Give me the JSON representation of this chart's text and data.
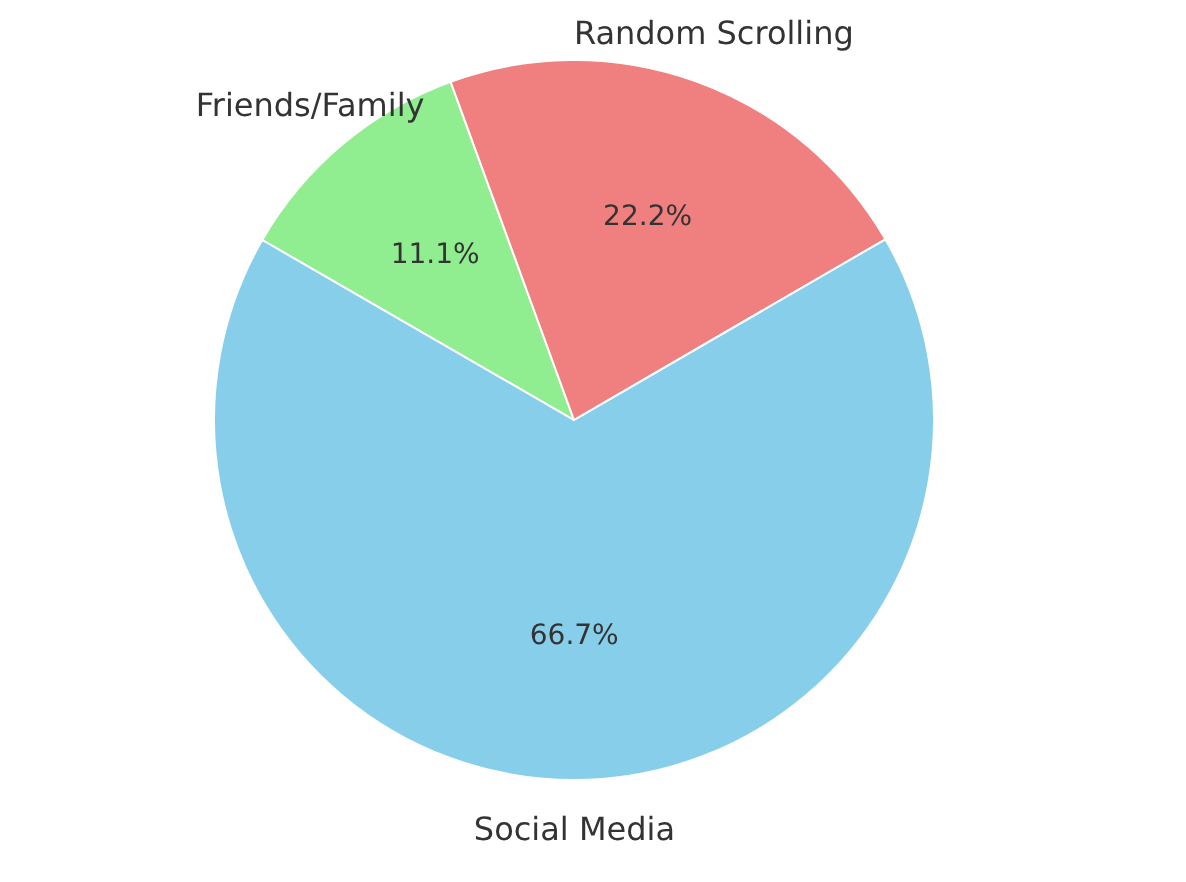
{
  "chart_data": {
    "type": "pie",
    "categories": [
      "Friends/Family",
      "Random Scrolling",
      "Social Media"
    ],
    "values": [
      11.1,
      22.2,
      66.7
    ],
    "colors": [
      "#90ee90",
      "#f08080",
      "#87ceeb"
    ],
    "value_labels": [
      "11.1%",
      "22.2%",
      "66.7%"
    ]
  }
}
